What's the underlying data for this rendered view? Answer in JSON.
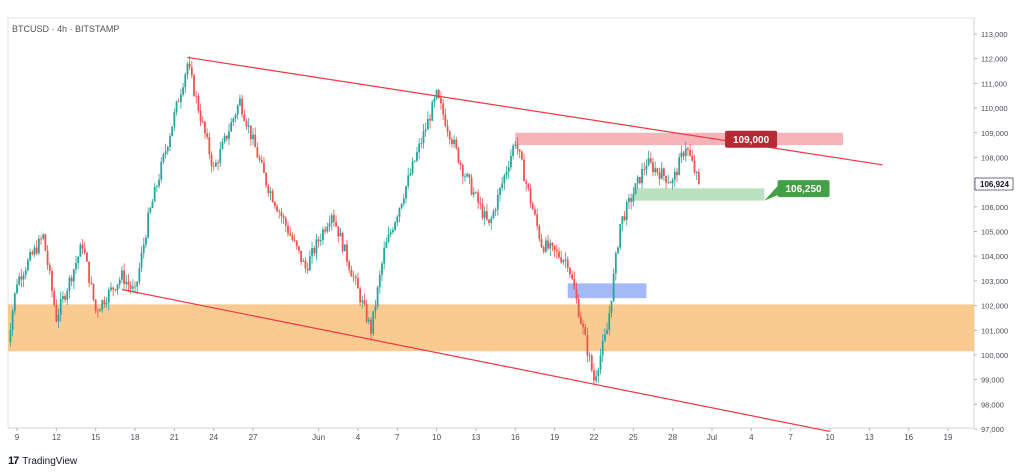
{
  "header": {
    "symbol_line": "BTCUSD · 4h · BITSTAMP"
  },
  "footer": {
    "brand_mark": "17",
    "brand_name": "TradingView"
  },
  "colors": {
    "up": "#26a69a",
    "down": "#ef5350",
    "resistance_zone": "#f4a0a8",
    "support_zone": "#a9dbb0",
    "demand_zone": "#f9c27e",
    "blue_zone": "#8fa8f5",
    "channel_line": "#f23645",
    "badge_red": "#b52a35",
    "badge_green": "#43a047"
  },
  "chart_data": {
    "type": "candlestick",
    "title": "",
    "xlabel": "",
    "ylabel": "",
    "ylim": [
      96800,
      113300
    ],
    "y_ticks": [
      "113,000",
      "112,000",
      "111,000",
      "110,000",
      "109,000",
      "108,000",
      "107,000",
      "106,000",
      "105,000",
      "104,000",
      "103,000",
      "102,000",
      "101,000",
      "100,000",
      "99,000",
      "98,000",
      "97,000"
    ],
    "y_tick_values": [
      113000,
      112000,
      111000,
      110000,
      109000,
      108000,
      107000,
      106000,
      105000,
      104000,
      103000,
      102000,
      101000,
      100000,
      99000,
      98000,
      97000
    ],
    "x_ticks": [
      "9",
      "12",
      "15",
      "18",
      "21",
      "24",
      "27",
      "Jun",
      "4",
      "7",
      "10",
      "13",
      "16",
      "19",
      "22",
      "25",
      "28",
      "Jul",
      "4",
      "7",
      "10",
      "13",
      "16",
      "19"
    ],
    "x_tick_dates": [
      "2025-05-09",
      "2025-05-12",
      "2025-05-15",
      "2025-05-18",
      "2025-05-21",
      "2025-05-24",
      "2025-05-27",
      "2025-06-01",
      "2025-06-04",
      "2025-06-07",
      "2025-06-10",
      "2025-06-13",
      "2025-06-16",
      "2025-06-19",
      "2025-06-22",
      "2025-06-25",
      "2025-06-28",
      "2025-07-01",
      "2025-07-04",
      "2025-07-07",
      "2025-07-10",
      "2025-07-13",
      "2025-07-16",
      "2025-07-19"
    ],
    "current_price_label": "106,924",
    "current_price": 106924,
    "key_price_points": [
      {
        "date": "2025-05-08",
        "price": 99500
      },
      {
        "date": "2025-05-09",
        "price": 103000
      },
      {
        "date": "2025-05-11",
        "price": 104800
      },
      {
        "date": "2025-05-12",
        "price": 101500
      },
      {
        "date": "2025-05-14",
        "price": 104500
      },
      {
        "date": "2025-05-15",
        "price": 101800
      },
      {
        "date": "2025-05-17",
        "price": 103200
      },
      {
        "date": "2025-05-18",
        "price": 102500
      },
      {
        "date": "2025-05-19",
        "price": 105500
      },
      {
        "date": "2025-05-22",
        "price": 111800
      },
      {
        "date": "2025-05-24",
        "price": 107500
      },
      {
        "date": "2025-05-26",
        "price": 110300
      },
      {
        "date": "2025-05-28",
        "price": 107000
      },
      {
        "date": "2025-05-31",
        "price": 103500
      },
      {
        "date": "2025-06-02",
        "price": 105800
      },
      {
        "date": "2025-06-05",
        "price": 101000
      },
      {
        "date": "2025-06-06",
        "price": 104200
      },
      {
        "date": "2025-06-10",
        "price": 110500
      },
      {
        "date": "2025-06-12",
        "price": 107500
      },
      {
        "date": "2025-06-14",
        "price": 105200
      },
      {
        "date": "2025-06-16",
        "price": 108700
      },
      {
        "date": "2025-06-18",
        "price": 104500
      },
      {
        "date": "2025-06-20",
        "price": 103800
      },
      {
        "date": "2025-06-22",
        "price": 99000
      },
      {
        "date": "2025-06-23",
        "price": 101000
      },
      {
        "date": "2025-06-24",
        "price": 105300
      },
      {
        "date": "2025-06-26",
        "price": 107800
      },
      {
        "date": "2025-06-28",
        "price": 107000
      },
      {
        "date": "2025-06-29",
        "price": 108500
      },
      {
        "date": "2025-06-30",
        "price": 106924
      }
    ],
    "zones": [
      {
        "name": "resistance",
        "color_key": "resistance_zone",
        "from_date": "2025-06-16",
        "to_date": "2025-07-11",
        "price_low": 108500,
        "price_high": 109000
      },
      {
        "name": "support",
        "color_key": "support_zone",
        "from_date": "2025-06-25",
        "to_date": "2025-07-05",
        "price_low": 106250,
        "price_high": 106750
      },
      {
        "name": "blue",
        "color_key": "blue_zone",
        "from_date": "2025-06-20",
        "to_date": "2025-06-26",
        "price_low": 102300,
        "price_high": 102900
      },
      {
        "name": "demand",
        "color_key": "demand_zone",
        "from_date": "2025-05-08",
        "to_date": "2025-07-22",
        "price_low": 100150,
        "price_high": 102050
      }
    ],
    "trendlines": [
      {
        "name": "upper-channel",
        "from": {
          "date": "2025-05-22",
          "price": 112050
        },
        "to": {
          "date": "2025-07-14",
          "price": 107700
        }
      },
      {
        "name": "lower-channel",
        "from": {
          "date": "2025-05-17",
          "price": 102650
        },
        "to": {
          "date": "2025-07-10",
          "price": 96900
        }
      }
    ],
    "labels": [
      {
        "text": "109,000",
        "color_key": "badge_red",
        "price": 109000,
        "date": "2025-07-02",
        "anchor_date": "2025-07-02",
        "anchor_price": 108800
      },
      {
        "text": "106,250",
        "color_key": "badge_green",
        "price": 107000,
        "date": "2025-07-06",
        "anchor_date": "2025-07-05",
        "anchor_price": 106250
      }
    ]
  }
}
